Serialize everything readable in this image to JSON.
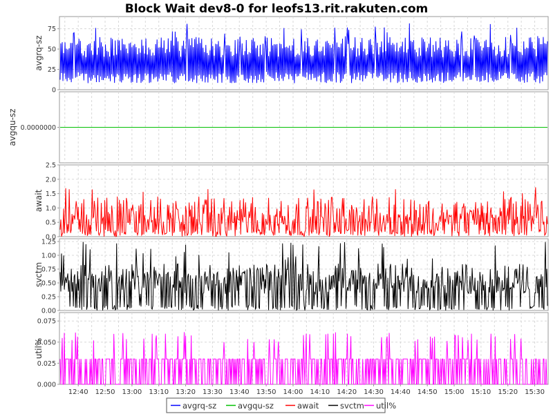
{
  "chart_data": {
    "type": "line",
    "title": "Block Wait dev8-0 for leofs13.rit.rakuten.com",
    "x_ticks": [
      "12:40",
      "12:50",
      "13:00",
      "13:10",
      "13:20",
      "13:30",
      "13:40",
      "13:50",
      "14:00",
      "14:10",
      "14:20",
      "14:30",
      "14:40",
      "14:50",
      "15:00",
      "15:10",
      "15:20",
      "15:30"
    ],
    "x_range": [
      "12:33",
      "15:35"
    ],
    "grid": true,
    "legend_position": "bottom",
    "series": [
      {
        "name": "avgrq-sz",
        "color": "#0000ff",
        "approx_range": [
          8,
          83
        ]
      },
      {
        "name": "avgqu-sz",
        "color": "#00c000",
        "approx_range": [
          0,
          0
        ]
      },
      {
        "name": "await",
        "color": "#ff0000",
        "approx_range": [
          0,
          2.4
        ]
      },
      {
        "name": "svctm",
        "color": "#000000",
        "approx_range": [
          0,
          1.25
        ]
      },
      {
        "name": "util%",
        "color": "#ff00ff",
        "approx_range": [
          0,
          0.08
        ]
      }
    ],
    "panels": [
      {
        "ylabel": "avgrq-sz",
        "series": "avgrq-sz",
        "ylim": [
          0,
          90
        ],
        "ticks": [
          {
            "v": 0,
            "label": "0"
          },
          {
            "v": 25,
            "label": "25"
          },
          {
            "v": 50,
            "label": "50"
          },
          {
            "v": 75,
            "label": "75"
          }
        ]
      },
      {
        "ylabel": "avgqu-sz",
        "series": "avgqu-sz",
        "ylim": [
          -1,
          1
        ],
        "ticks": [
          {
            "v": 0,
            "label": "0.0000000"
          }
        ]
      },
      {
        "ylabel": "await",
        "series": "await",
        "ylim": [
          0,
          2.5
        ],
        "ticks": [
          {
            "v": 0,
            "label": "0.0"
          },
          {
            "v": 0.5,
            "label": "0.5"
          },
          {
            "v": 1.0,
            "label": "1.0"
          },
          {
            "v": 1.5,
            "label": "1.5"
          },
          {
            "v": 2.0,
            "label": "2.0"
          },
          {
            "v": 2.5,
            "label": "2.5"
          }
        ]
      },
      {
        "ylabel": "svctm",
        "series": "svctm",
        "ylim": [
          0,
          1.3
        ],
        "ticks": [
          {
            "v": 0,
            "label": "0.00"
          },
          {
            "v": 0.25,
            "label": "0.25"
          },
          {
            "v": 0.5,
            "label": "0.50"
          },
          {
            "v": 0.75,
            "label": "0.75"
          },
          {
            "v": 1.0,
            "label": "1.00"
          },
          {
            "v": 1.25,
            "label": "1.25"
          }
        ]
      },
      {
        "ylabel": "util%",
        "series": "util%",
        "ylim": [
          0,
          0.085
        ],
        "ticks": [
          {
            "v": 0,
            "label": "0.000"
          },
          {
            "v": 0.025,
            "label": "0.025"
          },
          {
            "v": 0.05,
            "label": "0.050"
          },
          {
            "v": 0.075,
            "label": "0.075"
          }
        ]
      }
    ]
  }
}
